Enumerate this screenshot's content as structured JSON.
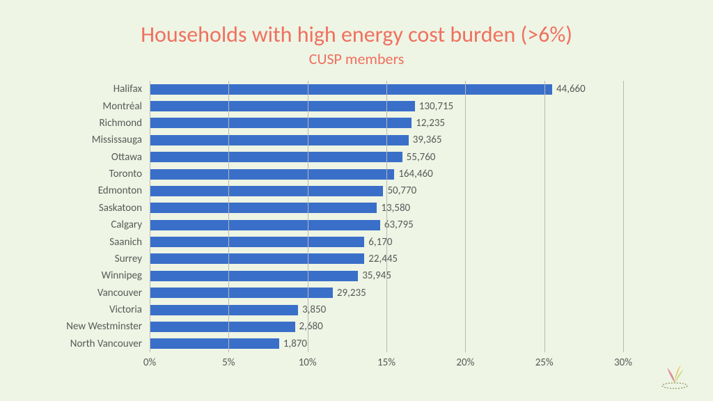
{
  "title": "Households with high energy cost burden (>6%)",
  "subtitle": "CUSP members",
  "title_color": "#f07060",
  "title_fontsize": 32,
  "subtitle_fontsize": 22,
  "background_color": "#eef5e4",
  "chart": {
    "type": "bar-horizontal",
    "bar_color": "#3a6fc9",
    "grid_color": "#b8b8b8",
    "label_color": "#595959",
    "label_fontsize": 15,
    "xlim": [
      0,
      30
    ],
    "xtick_step": 5,
    "xticks": [
      "0%",
      "5%",
      "10%",
      "15%",
      "20%",
      "25%",
      "30%"
    ],
    "categories": [
      "Halifax",
      "Montréal",
      "Richmond",
      "Mississauga",
      "Ottawa",
      "Toronto",
      "Edmonton",
      "Saskatoon",
      "Calgary",
      "Saanich",
      "Surrey",
      "Winnipeg",
      "Vancouver",
      "Victoria",
      "New Westminster",
      "North Vancouver"
    ],
    "percent_values": [
      25.5,
      16.8,
      16.6,
      16.4,
      16.0,
      15.5,
      14.8,
      14.4,
      14.6,
      13.6,
      13.6,
      13.2,
      11.6,
      9.4,
      9.2,
      8.2
    ],
    "data_labels": [
      "44,660",
      "130,715",
      "12,235",
      "39,365",
      "55,760",
      "164,460",
      "50,770",
      "13,580",
      "63,795",
      "6,170",
      "22,445",
      "35,945",
      "29,235",
      "3,850",
      "2,680",
      "1,870"
    ]
  },
  "logo_colors": {
    "leaf1": "#e97a9e",
    "leaf2": "#a4ce4e",
    "leaf3": "#f5a623",
    "leaf4": "#4a8b3a",
    "base": "#8a8a5a"
  }
}
